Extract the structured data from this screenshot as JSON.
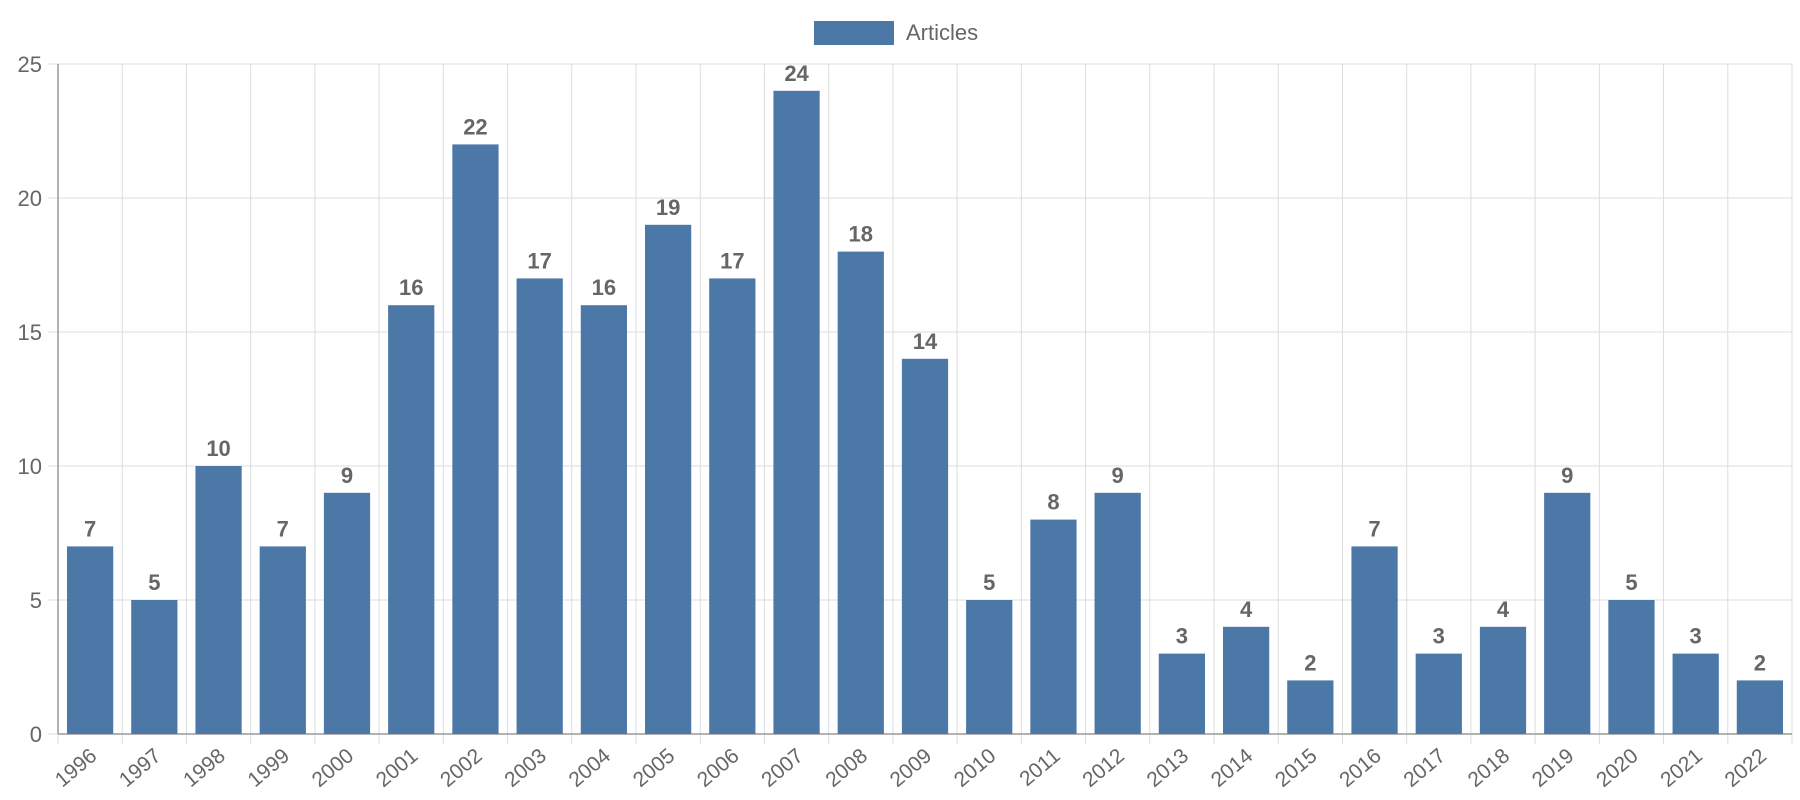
{
  "chart_data": {
    "type": "bar",
    "categories": [
      "1996",
      "1997",
      "1998",
      "1999",
      "2000",
      "2001",
      "2002",
      "2003",
      "2004",
      "2005",
      "2006",
      "2007",
      "2008",
      "2009",
      "2010",
      "2011",
      "2012",
      "2013",
      "2014",
      "2015",
      "2016",
      "2017",
      "2018",
      "2019",
      "2020",
      "2021",
      "2022"
    ],
    "series": [
      {
        "name": "Articles",
        "values": [
          7,
          5,
          10,
          7,
          9,
          16,
          22,
          17,
          16,
          19,
          17,
          24,
          18,
          14,
          5,
          8,
          9,
          3,
          4,
          2,
          7,
          3,
          4,
          9,
          5,
          3,
          2
        ]
      }
    ],
    "title": "",
    "xlabel": "",
    "ylabel": "",
    "ylim": [
      0,
      25
    ],
    "yticks": [
      0,
      5,
      10,
      15,
      20,
      25
    ],
    "grid": true,
    "legend": "top-center",
    "data_labels": true,
    "colors": {
      "bar": "#4c78a8",
      "grid": "#dddddd",
      "axis": "#999999",
      "text": "#666666"
    }
  }
}
